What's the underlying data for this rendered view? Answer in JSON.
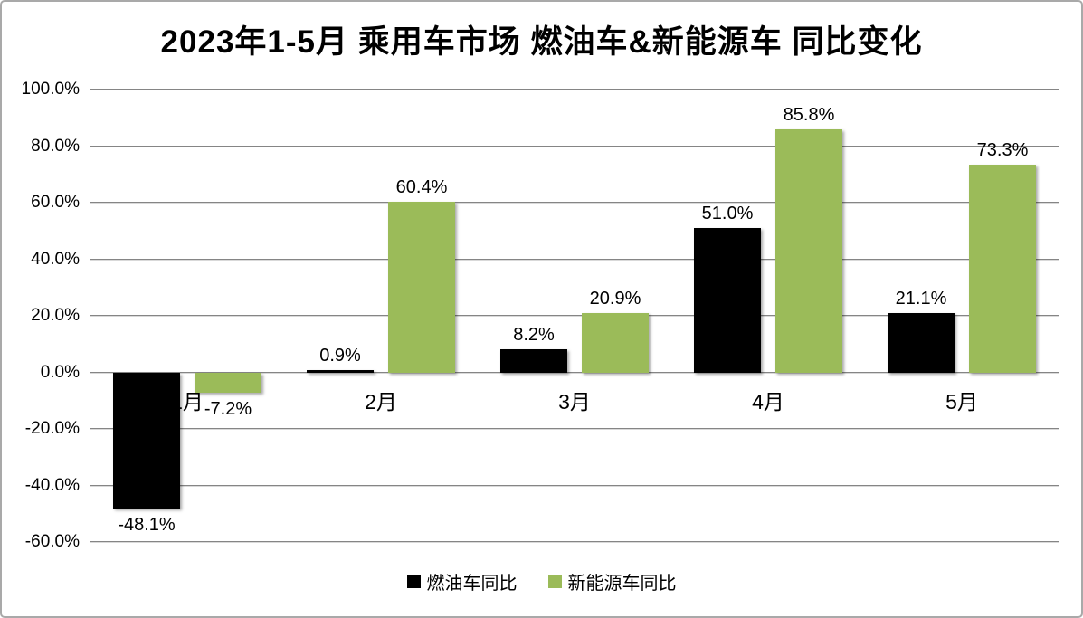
{
  "title": "2023年1-5月 乘用车市场 燃油车&新能源车 同比变化",
  "chart_data": {
    "type": "bar",
    "title": "2023年1-5月 乘用车市场 燃油车&新能源车 同比变化",
    "categories": [
      "1月",
      "2月",
      "3月",
      "4月",
      "5月"
    ],
    "series": [
      {
        "name": "燃油车同比",
        "color": "#000000",
        "values": [
          -48.1,
          0.9,
          8.2,
          51.0,
          21.1
        ],
        "labels": [
          "-48.1%",
          "0.9%",
          "8.2%",
          "51.0%",
          "21.1%"
        ]
      },
      {
        "name": "新能源车同比",
        "color": "#9BBB59",
        "values": [
          -7.2,
          60.4,
          20.9,
          85.8,
          73.3
        ],
        "labels": [
          "-7.2%",
          "60.4%",
          "20.9%",
          "85.8%",
          "73.3%"
        ]
      }
    ],
    "xlabel": "",
    "ylabel": "",
    "ylim": [
      -60,
      100
    ],
    "y_step": 20,
    "y_ticks": [
      "100.0%",
      "80.0%",
      "60.0%",
      "40.0%",
      "20.0%",
      "0.0%",
      "-20.0%",
      "-40.0%",
      "-60.0%"
    ],
    "grid": true,
    "legend_position": "bottom"
  },
  "legend": {
    "items": [
      {
        "label": "燃油车同比",
        "color": "#000000"
      },
      {
        "label": "新能源车同比",
        "color": "#9BBB59"
      }
    ]
  },
  "colors": {
    "fuel_bar": "#000000",
    "nev_bar": "#9BBB59",
    "gridline": "#858585",
    "chart_border": "#a9a9a9",
    "background": "#ffffff",
    "text": "#000000"
  }
}
